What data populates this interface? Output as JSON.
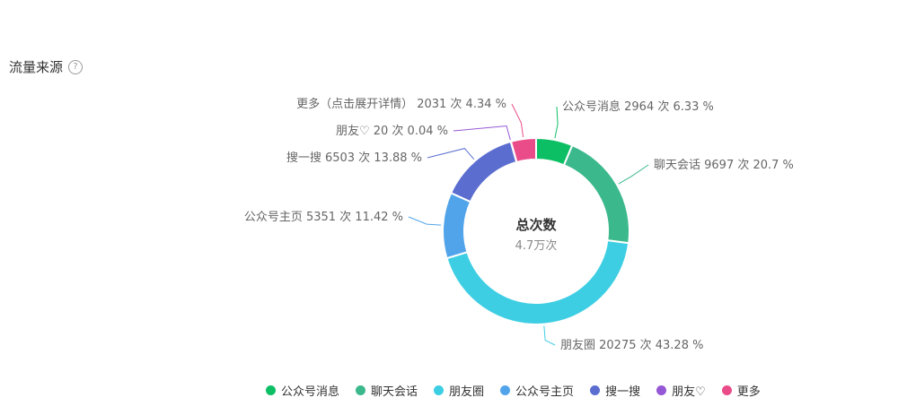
{
  "section": {
    "title": "流量来源",
    "help_icon": "question-circle-icon"
  },
  "chart_data": {
    "type": "pie",
    "variant": "donut",
    "center_title": "总次数",
    "center_value": "4.7万次",
    "categories": [
      "公众号消息",
      "聊天会话",
      "朋友圈",
      "公众号主页",
      "搜一搜",
      "朋友♡",
      "更多"
    ],
    "values": [
      2964,
      9697,
      20275,
      5351,
      6503,
      20,
      2031
    ],
    "labels": [
      "公众号消息 2964 次 6.33 %",
      "聊天会话 9697 次 20.7 %",
      "朋友圈 20275 次 43.28 %",
      "公众号主页 5351 次 11.42 %",
      "搜一搜 6503 次 13.88 %",
      "朋友♡ 20 次 0.04 %",
      "更多（点击展开详情） 2031 次 4.34 %"
    ],
    "colors": [
      "#0dbf64",
      "#3bb98c",
      "#3ecee3",
      "#52a4ea",
      "#5b6ed0",
      "#9457d6",
      "#ea4c89"
    ],
    "legend": {
      "position": "bottom",
      "entries": [
        "公众号消息",
        "聊天会话",
        "朋友圈",
        "公众号主页",
        "搜一搜",
        "朋友♡",
        "更多"
      ]
    }
  }
}
